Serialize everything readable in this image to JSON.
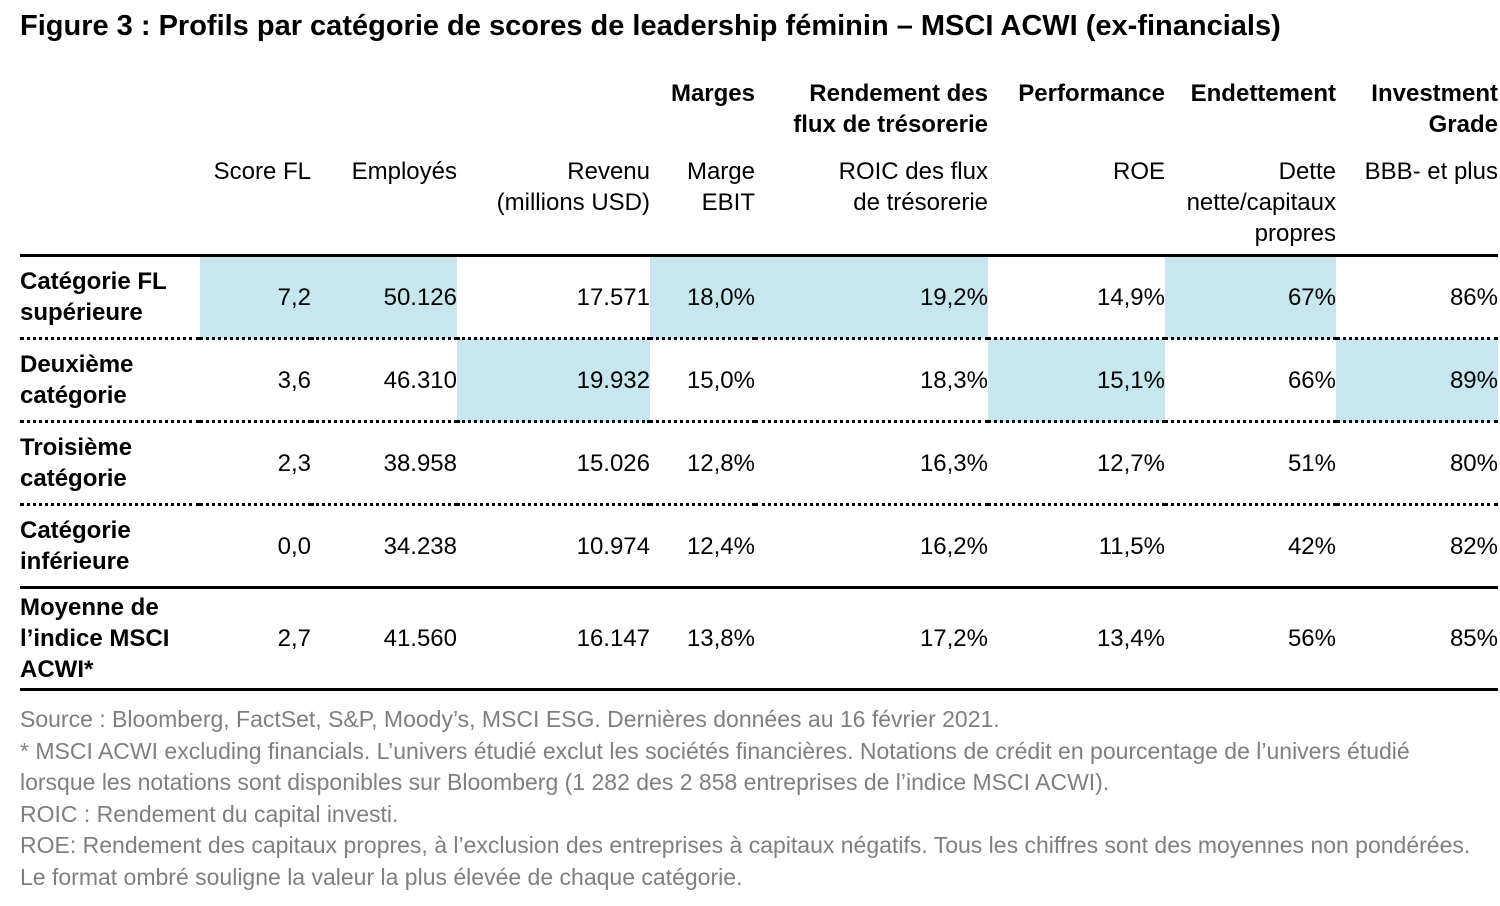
{
  "title": "Figure 3 : Profils par catégorie de scores de leadership féminin – MSCI ACWI (ex-financials)",
  "groups": {
    "margins": "Marges",
    "cash_flow": [
      "Rendement des",
      "flux de trésorerie"
    ],
    "performance": "Performance",
    "debt": "Endettement",
    "investment_grade": [
      "Investment",
      "Grade"
    ]
  },
  "columns": {
    "score": "Score FL",
    "employees": "Employés",
    "revenue": [
      "Revenu",
      "(millions USD)"
    ],
    "ebit": [
      "Marge",
      "EBIT"
    ],
    "roic": [
      "ROIC des flux",
      "de trésorerie"
    ],
    "roe": "ROE",
    "debt": [
      "Dette",
      "nette/capitaux",
      "propres"
    ],
    "rating": "BBB- et plus"
  },
  "rows": [
    {
      "label": [
        "Catégorie FL",
        "supérieure"
      ],
      "values": [
        "7,2",
        "50.126",
        "17.571",
        "18,0%",
        "19,2%",
        "14,9%",
        "67%",
        "86%"
      ],
      "highlight": [
        true,
        true,
        false,
        true,
        true,
        false,
        true,
        false
      ]
    },
    {
      "label": [
        "Deuxième",
        "catégorie"
      ],
      "values": [
        "3,6",
        "46.310",
        "19.932",
        "15,0%",
        "18,3%",
        "15,1%",
        "66%",
        "89%"
      ],
      "highlight": [
        false,
        false,
        true,
        false,
        false,
        true,
        false,
        true
      ]
    },
    {
      "label": [
        "Troisième",
        "catégorie"
      ],
      "values": [
        "2,3",
        "38.958",
        "15.026",
        "12,8%",
        "16,3%",
        "12,7%",
        "51%",
        "80%"
      ],
      "highlight": [
        false,
        false,
        false,
        false,
        false,
        false,
        false,
        false
      ]
    },
    {
      "label": [
        "Catégorie",
        "inférieure"
      ],
      "values": [
        "0,0",
        "34.238",
        "10.974",
        "12,4%",
        "16,2%",
        "11,5%",
        "42%",
        "82%"
      ],
      "highlight": [
        false,
        false,
        false,
        false,
        false,
        false,
        false,
        false
      ]
    },
    {
      "label": [
        "Moyenne de",
        "l’indice MSCI",
        "ACWI*"
      ],
      "values": [
        "2,7",
        "41.560",
        "16.147",
        "13,8%",
        "17,2%",
        "13,4%",
        "56%",
        "85%"
      ],
      "highlight": [
        false,
        false,
        false,
        false,
        false,
        false,
        false,
        false
      ]
    }
  ],
  "highlight_color": "#c7e6ee",
  "notes": [
    "Source : Bloomberg, FactSet, S&P, Moody’s, MSCI ESG. Dernières données au 16 février 2021.",
    "* MSCI ACWI excluding financials. L’univers étudié exclut les sociétés financières. Notations de crédit en pourcentage de l’univers étudié lorsque les notations sont disponibles sur Bloomberg (1 282 des 2 858 entreprises de l’indice MSCI ACWI).",
    "ROIC : Rendement du capital investi.",
    "ROE: Rendement des capitaux propres, à l’exclusion des entreprises à capitaux négatifs. Tous les chiffres sont des moyennes non pondérées. Le format ombré souligne la valeur la plus élevée de chaque catégorie."
  ]
}
